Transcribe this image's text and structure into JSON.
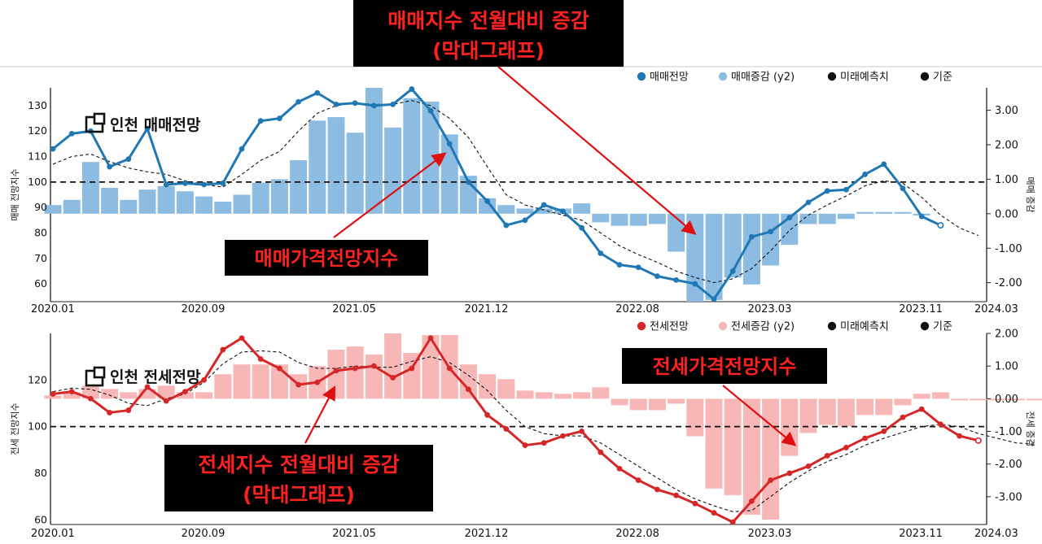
{
  "colors": {
    "sale_line": "#1f77b4",
    "sale_bar": "#8dbce3",
    "jeonse_line": "#d62728",
    "jeonse_bar": "#f8b7b7",
    "forecast_marker": "#111111",
    "baseline": "#111111",
    "annotation_bg": "#000000",
    "annotation_text": "#ff2020",
    "arrow": "#e01010"
  },
  "annotations": {
    "top_box": {
      "line1": "매매지수 전월대비 증감",
      "line2": "(막대그래프)"
    },
    "sale_index_box": {
      "text": "매매가격전망지수"
    },
    "jeonse_index_box": {
      "text": "전세가격전망지수"
    },
    "jeonse_change_box": {
      "line1": "전세지수 전월대비 증감",
      "line2": "(막대그래프)"
    }
  },
  "chart_data": [
    {
      "type": "line+bar",
      "title": "인천 매매전망",
      "ylabel": "매매 전망지수",
      "y2label": "매매 증감",
      "ylim": [
        53,
        137
      ],
      "yticks": [
        60,
        70,
        80,
        90,
        100,
        110,
        120,
        130
      ],
      "y2lim": [
        -2.55,
        3.65
      ],
      "y2ticks": [
        3.0,
        2.0,
        1.0,
        0.0,
        -1.0,
        -2.0
      ],
      "y2tick_labels": [
        "3.00",
        "2.00",
        "1.00",
        "0.00",
        "-1.00",
        "-2.00"
      ],
      "x_tick_labels": [
        "2020.01",
        "2020.09",
        "2021.05",
        "2021.12",
        "2022.08",
        "2023.03",
        "2023.11",
        "2024.03"
      ],
      "x_tick_index": [
        0,
        8,
        16,
        23,
        31,
        38,
        46,
        50
      ],
      "baseline": 100,
      "legend": [
        {
          "label": "매매전망",
          "color": "#1f77b4"
        },
        {
          "label": "매매증감 (y2)",
          "color": "#8dbce3"
        },
        {
          "label": "미래예측치",
          "color": "#111111"
        },
        {
          "label": "기준",
          "color": "#111111"
        }
      ],
      "series": [
        {
          "name": "매매전망",
          "kind": "line",
          "values": [
            113,
            119,
            120,
            106,
            109,
            121,
            99,
            99.5,
            99,
            99.5,
            113,
            124,
            125,
            131.5,
            135,
            130.5,
            131,
            130,
            130.5,
            136.5,
            128,
            115,
            100,
            92.5,
            83,
            85,
            91,
            88.5,
            82,
            72,
            67.5,
            66.5,
            63,
            61.5,
            60,
            54,
            65,
            78.5,
            80.5,
            86,
            92,
            96.5,
            97,
            103,
            107,
            97.5,
            86.5,
            83
          ]
        },
        {
          "name": "매매증감 (y2)",
          "kind": "bar",
          "values": [
            0.25,
            0.4,
            1.5,
            0.75,
            0.4,
            0.7,
            0.8,
            0.65,
            0.5,
            0.35,
            0.55,
            0.9,
            1.0,
            1.55,
            2.7,
            2.8,
            2.35,
            3.65,
            2.5,
            3.35,
            3.25,
            2.3,
            1.1,
            0.45,
            0.25,
            0.15,
            0.15,
            0.15,
            0.3,
            -0.25,
            -0.35,
            -0.35,
            -0.3,
            -1.1,
            -2.55,
            -2.5,
            -1.85,
            -2.05,
            -1.5,
            -0.9,
            -0.3,
            -0.3,
            -0.15,
            0.05,
            0.05,
            0.05,
            -0.05
          ]
        },
        {
          "name": "미래예측치",
          "kind": "dashed",
          "values": [
            107,
            110,
            111,
            108,
            105.5,
            104,
            103,
            100.5,
            99,
            98,
            103,
            108.5,
            112,
            120,
            127,
            130,
            131,
            130.5,
            130.5,
            132,
            130,
            125,
            117.5,
            106,
            95,
            91,
            89,
            87,
            85,
            80,
            75,
            71.5,
            68.5,
            65,
            62.5,
            60.5,
            62,
            66,
            73,
            81,
            87,
            91,
            94.5,
            98.5,
            100.5,
            99.5,
            94,
            87,
            82,
            79
          ]
        }
      ]
    },
    {
      "type": "line+bar",
      "title": "인천 전세전망",
      "ylabel": "전세 전망지수",
      "y2label": "전세 증감",
      "ylim": [
        58,
        140
      ],
      "yticks": [
        60,
        80,
        100,
        120
      ],
      "y2lim": [
        -3.85,
        2.0
      ],
      "y2ticks": [
        2.0,
        1.0,
        0.0,
        -1.0,
        -2.0,
        -3.0
      ],
      "y2tick_labels": [
        "2.00",
        "1.00",
        "0.00",
        "-1.00",
        "-2.00",
        "-3.00"
      ],
      "x_tick_labels": [
        "2020.01",
        "2020.09",
        "2021.05",
        "2021.12",
        "2022.08",
        "2023.03",
        "2023.11",
        "2024.03"
      ],
      "x_tick_index": [
        0,
        8,
        16,
        23,
        31,
        38,
        46,
        50
      ],
      "baseline": 100,
      "legend": [
        {
          "label": "전세전망",
          "color": "#d62728"
        },
        {
          "label": "전세증감 (y2)",
          "color": "#f8b7b7"
        },
        {
          "label": "미래예측치",
          "color": "#111111"
        },
        {
          "label": "기준",
          "color": "#111111"
        }
      ],
      "series": [
        {
          "name": "전세전망",
          "kind": "line",
          "values": [
            114,
            115,
            112,
            106,
            107,
            117,
            111,
            115,
            120,
            133,
            138,
            129,
            125,
            118,
            119,
            124,
            125,
            126,
            121,
            125,
            138,
            125,
            116,
            105,
            99,
            92,
            93,
            96,
            98,
            89,
            82,
            77,
            73,
            70.5,
            67,
            63,
            59,
            68,
            77,
            80,
            83,
            87.5,
            91,
            95,
            98,
            104,
            107.5,
            101,
            96,
            94
          ]
        },
        {
          "name": "전세증감 (y2)",
          "kind": "bar",
          "values": [
            0.1,
            0.2,
            0.4,
            0.3,
            0.2,
            0.3,
            0.4,
            0.2,
            0.2,
            0.75,
            1.05,
            1.05,
            1.05,
            0.75,
            1.0,
            1.5,
            1.6,
            1.35,
            2.0,
            1.4,
            1.95,
            1.95,
            1.05,
            0.75,
            0.6,
            0.25,
            0.2,
            0.15,
            0.2,
            0.35,
            -0.2,
            -0.35,
            -0.35,
            -0.15,
            -1.15,
            -2.75,
            -2.95,
            -3.55,
            -3.7,
            -1.75,
            -1.05,
            -0.8,
            -0.85,
            -0.5,
            -0.5,
            -0.2,
            0.15,
            0.2,
            -0.05,
            -0.05,
            -0.05,
            -0.05,
            -0.05
          ]
        },
        {
          "name": "미래예측치",
          "kind": "dashed",
          "values": [
            115,
            116.5,
            116,
            113.5,
            110,
            109,
            112,
            114,
            119,
            127,
            132,
            132.5,
            132,
            127.5,
            125,
            125,
            126,
            125.5,
            125.5,
            128,
            130,
            127.5,
            122,
            115.5,
            107,
            100,
            97,
            96,
            96,
            93,
            88,
            83,
            78,
            73,
            69,
            66,
            63.5,
            64,
            70,
            76,
            81,
            85,
            88,
            92,
            95,
            97.5,
            100,
            101,
            100,
            97,
            95,
            93,
            92.5
          ]
        }
      ]
    }
  ]
}
